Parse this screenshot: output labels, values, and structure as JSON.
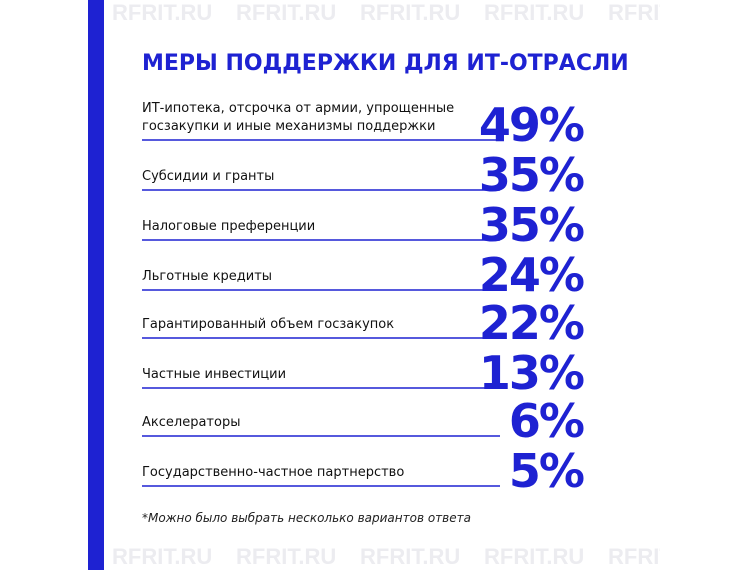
{
  "watermark": "RFRIT.RU",
  "title": "МЕРЫ ПОДДЕРЖКИ ДЛЯ ИТ-ОТРАСЛИ",
  "items": [
    {
      "label": [
        "ИТ-ипотека, отсрочка от армии, упрощенные",
        "госзакупки и иные механизмы поддержки"
      ],
      "value": "49%"
    },
    {
      "label": [
        "Субсидии и гранты"
      ],
      "value": "35%"
    },
    {
      "label": [
        "Налоговые преференции"
      ],
      "value": "35%"
    },
    {
      "label": [
        "Льготные кредиты"
      ],
      "value": "24%"
    },
    {
      "label": [
        "Гарантированный объем госзакупок"
      ],
      "value": "22%"
    },
    {
      "label": [
        "Частные инвестиции"
      ],
      "value": "13%"
    },
    {
      "label": [
        "Акселераторы"
      ],
      "value": "6%"
    },
    {
      "label": [
        "Государственно-частное партнерство"
      ],
      "value": "5%"
    }
  ],
  "footnote": "*Можно было выбрать несколько вариантов ответа"
}
